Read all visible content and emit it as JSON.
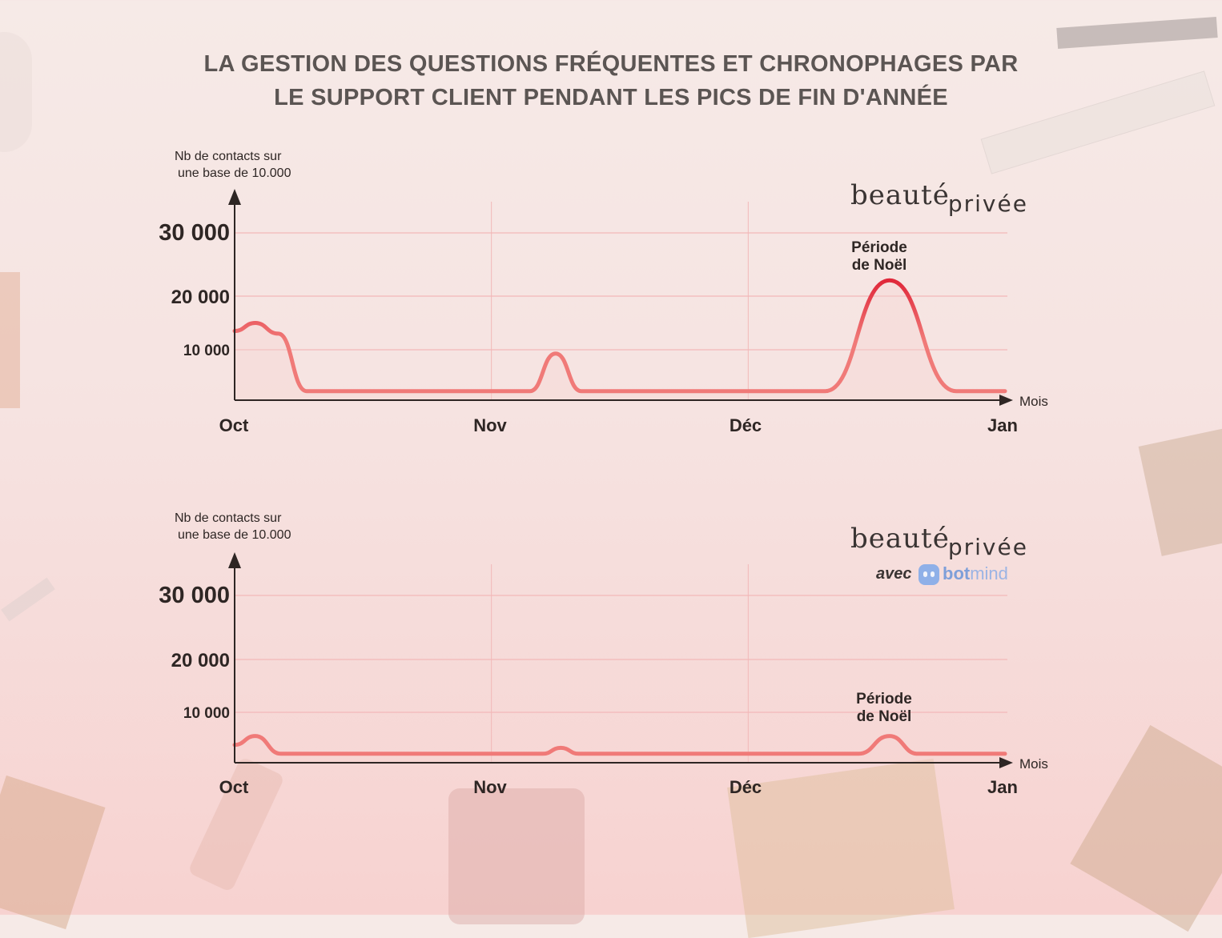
{
  "title": {
    "line1": "LA GESTION DES QUESTIONS FRÉQUENTES ET CHRONOPHAGES PAR",
    "line2": "LE SUPPORT CLIENT PENDANT LES PICS DE FIN D'ANNÉE"
  },
  "brand": {
    "name_part1": "beauté",
    "name_part2": "privée",
    "avec": "avec",
    "partner_part1": "bot",
    "partner_part2": "mind"
  },
  "colors": {
    "curve": "#f07a78",
    "peak": "#e0283a",
    "grid": "#f2b8b8",
    "axis": "#2e2624"
  },
  "chart_data": [
    {
      "type": "line",
      "ylabel_line1": "Nb de contacts sur",
      "ylabel_line2": "une base de 10.000",
      "xlabel": "Mois",
      "categories": [
        "Oct",
        "Nov",
        "Déc",
        "Jan"
      ],
      "yticks": [
        "10 000",
        "20 000",
        "30 000"
      ],
      "ytick_values": [
        10000,
        20000,
        30000
      ],
      "ylim": [
        0,
        33000
      ],
      "xlim": [
        0,
        3
      ],
      "grid": true,
      "annotation": {
        "line1": "Période",
        "line2": "de Noël",
        "x": 2.55
      },
      "series": [
        {
          "values": [
            [
              0.0,
              13500
            ],
            [
              0.08,
              15000
            ],
            [
              0.17,
              13000
            ],
            [
              0.28,
              4500
            ],
            [
              1.0,
              4500
            ],
            [
              1.15,
              4500
            ],
            [
              1.25,
              9500
            ],
            [
              1.35,
              4500
            ],
            [
              2.0,
              4500
            ],
            [
              2.3,
              4500
            ],
            [
              2.55,
              22500
            ],
            [
              2.81,
              4500
            ],
            [
              3.0,
              4500
            ]
          ]
        }
      ]
    },
    {
      "type": "line",
      "ylabel_line1": "Nb de contacts sur",
      "ylabel_line2": "une base de 10.000",
      "xlabel": "Mois",
      "categories": [
        "Oct",
        "Nov",
        "Déc",
        "Jan"
      ],
      "yticks": [
        "10 000",
        "20 000",
        "30 000"
      ],
      "ytick_values": [
        10000,
        20000,
        30000
      ],
      "ylim": [
        0,
        33000
      ],
      "xlim": [
        0,
        3
      ],
      "grid": true,
      "annotation": {
        "line1": "Période",
        "line2": "de Noël",
        "x": 2.55
      },
      "series": [
        {
          "values": [
            [
              0.0,
              4500
            ],
            [
              0.08,
              6000
            ],
            [
              0.18,
              3000
            ],
            [
              1.2,
              3000
            ],
            [
              1.27,
              4000
            ],
            [
              1.34,
              3000
            ],
            [
              2.43,
              3000
            ],
            [
              2.55,
              6000
            ],
            [
              2.66,
              3000
            ],
            [
              3.0,
              3000
            ]
          ]
        }
      ]
    }
  ]
}
